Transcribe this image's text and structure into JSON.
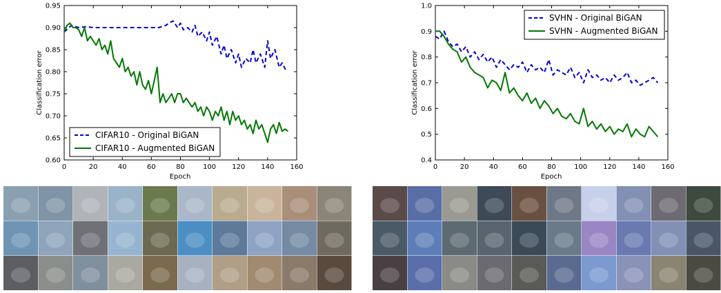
{
  "chart_data": [
    {
      "type": "line",
      "xlabel": "Epoch",
      "ylabel": "Classification error",
      "xlim": [
        0,
        160
      ],
      "ylim": [
        0.6,
        0.95
      ],
      "xticks": [
        0,
        20,
        40,
        60,
        80,
        100,
        120,
        140,
        160
      ],
      "yticks": [
        0.6,
        0.65,
        0.7,
        0.75,
        0.8,
        0.85,
        0.9,
        0.95
      ],
      "ytick_labels": [
        "0.60",
        "0.65",
        "0.70",
        "0.75",
        "0.80",
        "0.85",
        "0.90",
        "0.95"
      ],
      "xtick_labels": [
        "0",
        "20",
        "40",
        "60",
        "80",
        "100",
        "120",
        "140",
        "160"
      ],
      "grid": false,
      "legend_position": "bottom-left",
      "series": [
        {
          "name": "CIFAR10 - Original BiGAN",
          "color": "#0000cc",
          "style": "dashed",
          "x": [
            0,
            5,
            10,
            15,
            20,
            25,
            30,
            35,
            40,
            45,
            50,
            55,
            60,
            65,
            70,
            72,
            75,
            78,
            80,
            82,
            85,
            88,
            90,
            92,
            95,
            98,
            100,
            102,
            105,
            108,
            110,
            112,
            115,
            118,
            120,
            122,
            125,
            128,
            130,
            132,
            135,
            138,
            140,
            142,
            145,
            148,
            150,
            153
          ],
          "y": [
            0.89,
            0.905,
            0.9,
            0.902,
            0.9,
            0.9,
            0.9,
            0.9,
            0.9,
            0.9,
            0.9,
            0.9,
            0.9,
            0.9,
            0.905,
            0.91,
            0.915,
            0.9,
            0.91,
            0.895,
            0.9,
            0.89,
            0.905,
            0.88,
            0.89,
            0.87,
            0.89,
            0.86,
            0.88,
            0.84,
            0.86,
            0.83,
            0.85,
            0.82,
            0.84,
            0.81,
            0.83,
            0.82,
            0.85,
            0.82,
            0.84,
            0.81,
            0.87,
            0.83,
            0.85,
            0.81,
            0.82,
            0.8
          ]
        },
        {
          "name": "CIFAR10 - Augmented BiGAN",
          "color": "#007700",
          "style": "solid",
          "x": [
            0,
            2,
            4,
            6,
            8,
            10,
            12,
            14,
            16,
            18,
            20,
            22,
            24,
            26,
            28,
            30,
            32,
            34,
            36,
            38,
            40,
            42,
            44,
            46,
            48,
            50,
            52,
            54,
            56,
            58,
            60,
            62,
            64,
            66,
            68,
            70,
            72,
            74,
            76,
            78,
            80,
            82,
            84,
            86,
            88,
            90,
            92,
            94,
            96,
            98,
            100,
            102,
            104,
            106,
            108,
            110,
            112,
            114,
            116,
            118,
            120,
            122,
            124,
            126,
            128,
            130,
            132,
            134,
            136,
            138,
            140,
            142,
            144,
            146,
            148,
            150,
            152,
            154
          ],
          "y": [
            0.89,
            0.905,
            0.91,
            0.9,
            0.9,
            0.895,
            0.88,
            0.9,
            0.87,
            0.88,
            0.87,
            0.86,
            0.875,
            0.85,
            0.86,
            0.84,
            0.87,
            0.83,
            0.82,
            0.81,
            0.83,
            0.8,
            0.81,
            0.79,
            0.8,
            0.77,
            0.8,
            0.77,
            0.76,
            0.78,
            0.75,
            0.78,
            0.81,
            0.73,
            0.75,
            0.73,
            0.74,
            0.75,
            0.73,
            0.75,
            0.75,
            0.73,
            0.74,
            0.73,
            0.72,
            0.73,
            0.71,
            0.72,
            0.7,
            0.72,
            0.71,
            0.69,
            0.71,
            0.7,
            0.72,
            0.69,
            0.71,
            0.68,
            0.71,
            0.69,
            0.7,
            0.68,
            0.69,
            0.67,
            0.68,
            0.66,
            0.69,
            0.67,
            0.68,
            0.66,
            0.64,
            0.67,
            0.68,
            0.66,
            0.685,
            0.665,
            0.67,
            0.665
          ]
        }
      ]
    },
    {
      "type": "line",
      "xlabel": "Epoch",
      "ylabel": "Classification error",
      "xlim": [
        0,
        160
      ],
      "ylim": [
        0.4,
        1.0
      ],
      "xticks": [
        0,
        20,
        40,
        60,
        80,
        100,
        120,
        140,
        160
      ],
      "yticks": [
        0.4,
        0.5,
        0.6,
        0.7,
        0.8,
        0.9,
        1.0
      ],
      "ytick_labels": [
        "0.4",
        "0.5",
        "0.6",
        "0.7",
        "0.8",
        "0.9",
        "1.0"
      ],
      "xtick_labels": [
        "0",
        "20",
        "40",
        "60",
        "80",
        "100",
        "120",
        "140",
        "160"
      ],
      "grid": false,
      "legend_position": "top-right",
      "series": [
        {
          "name": "SVHN - Original BiGAN",
          "color": "#0000cc",
          "style": "dashed",
          "x": [
            0,
            3,
            6,
            9,
            12,
            15,
            18,
            21,
            24,
            27,
            30,
            33,
            36,
            39,
            42,
            45,
            48,
            51,
            54,
            57,
            60,
            63,
            66,
            69,
            72,
            75,
            78,
            81,
            84,
            87,
            90,
            93,
            96,
            99,
            102,
            105,
            108,
            111,
            114,
            117,
            120,
            123,
            126,
            129,
            132,
            135,
            138,
            141,
            144,
            147,
            150,
            153
          ],
          "y": [
            0.88,
            0.87,
            0.9,
            0.86,
            0.84,
            0.85,
            0.82,
            0.84,
            0.8,
            0.82,
            0.79,
            0.81,
            0.78,
            0.8,
            0.76,
            0.79,
            0.77,
            0.75,
            0.77,
            0.76,
            0.78,
            0.74,
            0.77,
            0.75,
            0.76,
            0.74,
            0.79,
            0.73,
            0.75,
            0.74,
            0.73,
            0.76,
            0.72,
            0.74,
            0.7,
            0.75,
            0.72,
            0.73,
            0.71,
            0.72,
            0.7,
            0.73,
            0.71,
            0.72,
            0.74,
            0.7,
            0.71,
            0.69,
            0.7,
            0.71,
            0.72,
            0.7
          ]
        },
        {
          "name": "SVHN - Augmented BiGAN",
          "color": "#007700",
          "style": "solid",
          "x": [
            0,
            3,
            6,
            9,
            12,
            15,
            18,
            21,
            24,
            27,
            30,
            33,
            36,
            39,
            42,
            45,
            48,
            51,
            54,
            57,
            60,
            63,
            66,
            69,
            72,
            75,
            78,
            81,
            84,
            87,
            90,
            93,
            96,
            99,
            102,
            105,
            108,
            111,
            114,
            117,
            120,
            123,
            126,
            129,
            132,
            135,
            138,
            141,
            144,
            147,
            150,
            153
          ],
          "y": [
            0.9,
            0.9,
            0.88,
            0.85,
            0.83,
            0.82,
            0.78,
            0.8,
            0.76,
            0.74,
            0.73,
            0.72,
            0.68,
            0.71,
            0.7,
            0.67,
            0.74,
            0.66,
            0.68,
            0.65,
            0.63,
            0.66,
            0.62,
            0.64,
            0.6,
            0.63,
            0.61,
            0.58,
            0.6,
            0.57,
            0.56,
            0.58,
            0.55,
            0.54,
            0.6,
            0.53,
            0.55,
            0.52,
            0.54,
            0.51,
            0.53,
            0.5,
            0.52,
            0.51,
            0.54,
            0.49,
            0.52,
            0.5,
            0.49,
            0.53,
            0.51,
            0.49
          ]
        }
      ]
    }
  ],
  "sample_grids": [
    {
      "rows": 3,
      "cols": 10,
      "tiles": [
        "#8aa0b0",
        "#7f94a6",
        "#b0b4b8",
        "#9ab3c8",
        "#6b7a4e",
        "#a9b7c9",
        "#b9ab8e",
        "#c7b49a",
        "#a98e7a",
        "#8a8578",
        "#6f94b3",
        "#8ea4bb",
        "#6f7176",
        "#96b4cf",
        "#6d6a52",
        "#4b8ec3",
        "#5e7a9a",
        "#8ea3c4",
        "#758aa3",
        "#6f6a5e",
        "#5d5e62",
        "#8a8e8a",
        "#7f8f9d",
        "#a9a9a1",
        "#7b6a4e",
        "#a7b1c0",
        "#b09e86",
        "#a08a70",
        "#8a7a6a",
        "#5a4a3e"
      ]
    },
    {
      "rows": 3,
      "cols": 10,
      "tiles": [
        "#5a4a48",
        "#5a6ea6",
        "#9a9a92",
        "#3e4a56",
        "#6a5040",
        "#6f7886",
        "#c7d0ea",
        "#8290b4",
        "#6e6a72",
        "#3f4a3e",
        "#4a5a66",
        "#5d7db8",
        "#5c6a72",
        "#5a6470",
        "#3a4a56",
        "#6a7a8a",
        "#9a86c4",
        "#6a7ab0",
        "#8290b6",
        "#4a5668",
        "#4a4044",
        "#5a6eaa",
        "#8a8a86",
        "#6a6a70",
        "#5a5a56",
        "#5a6a90",
        "#7a9ad0",
        "#8a92b8",
        "#8a8472",
        "#4a4a42"
      ]
    }
  ]
}
